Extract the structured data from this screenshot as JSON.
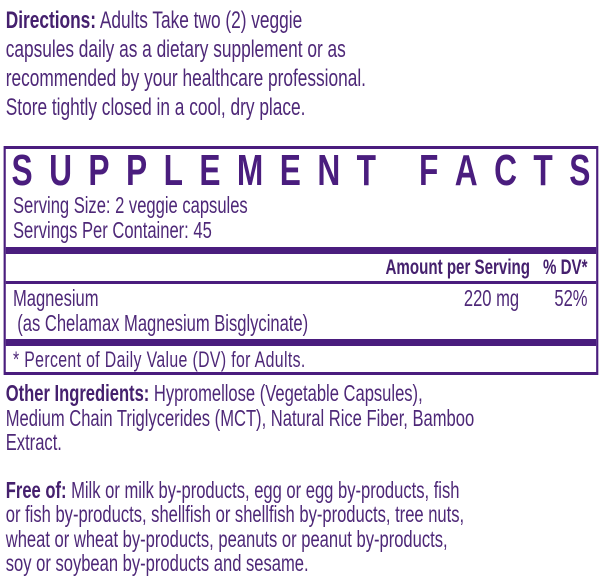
{
  "label": {
    "colors": {
      "accent_purple": "#4A1D7E",
      "text_purple": "#4E2878",
      "background": "#FFFFFF"
    },
    "directions": {
      "lead": "Directions:",
      "text": " Adults Take two (2) veggie\ncapsules daily as a dietary supplement or as\nrecommended by your healthcare professional.\nStore tightly closed in a cool, dry place."
    },
    "facts": {
      "title": "SUPPLEMENT FACTS",
      "serving_size": "Serving Size: 2 veggie capsules",
      "servings_per_container": "Servings Per Container: 45",
      "amount_header": "Amount per Serving",
      "dv_header": "% DV*",
      "rows": [
        {
          "name": "Magnesium",
          "sub": "(as Chelamax Magnesium Bisglycinate)",
          "amount": "220 mg",
          "dv": "52%"
        }
      ],
      "footnote": "* Percent of Daily Value (DV) for Adults."
    },
    "other_ingredients": {
      "lead": "Other Ingredients:",
      "text": " Hypromellose (Vegetable Capsules),\nMedium Chain Triglycerides (MCT), Natural Rice Fiber, Bamboo\nExtract."
    },
    "free_of": {
      "lead": "Free of:",
      "text": " Milk or milk by-products, egg or egg by-products, fish\nor fish by-products, shellfish or shellfish by-products, tree nuts,\nwheat or wheat by-products, peanuts or peanut by-products,\nsoy or soybean by-products and sesame."
    }
  }
}
